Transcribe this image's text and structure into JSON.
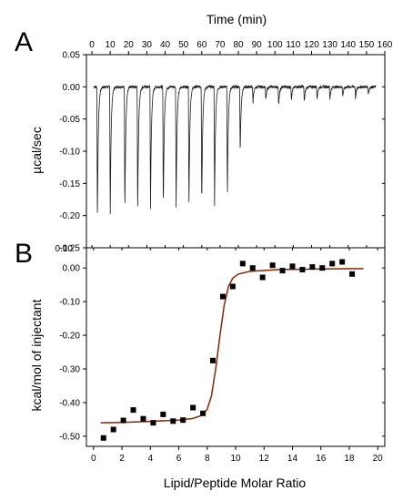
{
  "chart_data": [
    {
      "type": "line",
      "panel_label": "A",
      "title": "",
      "xlabel": "Time (min)",
      "ylabel": "µcal/sec",
      "xlim": [
        -3,
        160
      ],
      "ylim": [
        -0.25,
        0.05
      ],
      "x_ticks": [
        0,
        10,
        20,
        30,
        40,
        50,
        60,
        70,
        80,
        90,
        100,
        110,
        120,
        130,
        140,
        150,
        160
      ],
      "x_tick_labels": [
        "0",
        "10",
        "20",
        "30",
        "40",
        "50",
        "60",
        "70",
        "80",
        "90",
        "100",
        "110",
        "120",
        "130",
        "140",
        "150",
        "160"
      ],
      "y_ticks": [
        0.05,
        0.0,
        -0.05,
        -0.1,
        -0.15,
        -0.2,
        -0.25
      ],
      "y_tick_labels": [
        "0.05",
        "0.00",
        "-0.05",
        "-0.10",
        "-0.15",
        "-0.20",
        "-0.25"
      ],
      "baseline": 0.0,
      "series": [
        {
          "color": "#1a1a1a",
          "injection_times": [
            3,
            10,
            18,
            25,
            32,
            39,
            46,
            53,
            60,
            67,
            74,
            81,
            88,
            95,
            102,
            109,
            116,
            123,
            130,
            137,
            144,
            151
          ],
          "injection_peaks": [
            -0.21,
            -0.205,
            -0.2,
            -0.198,
            -0.196,
            -0.195,
            -0.193,
            -0.19,
            -0.188,
            -0.185,
            -0.175,
            -0.105,
            -0.025,
            -0.022,
            -0.03,
            -0.02,
            -0.025,
            -0.018,
            -0.02,
            -0.015,
            -0.018,
            -0.012
          ]
        }
      ]
    },
    {
      "type": "scatter",
      "panel_label": "B",
      "title": "",
      "xlabel": "Lipid/Peptide Molar Ratio",
      "ylabel": "kcal/mol of injectant",
      "xlim": [
        -0.5,
        20.5
      ],
      "ylim": [
        -0.53,
        0.06
      ],
      "x_ticks": [
        0,
        2,
        4,
        6,
        8,
        10,
        12,
        14,
        16,
        18,
        20
      ],
      "x_tick_labels": [
        "0",
        "2",
        "4",
        "6",
        "8",
        "10",
        "12",
        "14",
        "16",
        "18",
        "20"
      ],
      "y_ticks": [
        0.0,
        -0.1,
        -0.2,
        -0.3,
        -0.4,
        -0.5
      ],
      "y_tick_labels": [
        "0.00",
        "-0.10",
        "-0.20",
        "-0.30",
        "-0.40",
        "-0.50"
      ],
      "extra_top_tick_label": "0.10",
      "series": [
        {
          "marker": "square",
          "color": "#000000",
          "x": [
            0.7,
            1.4,
            2.1,
            2.8,
            3.5,
            4.2,
            4.9,
            5.6,
            6.3,
            7.0,
            7.7,
            8.4,
            9.1,
            9.8,
            10.5,
            11.2,
            11.9,
            12.6,
            13.3,
            14.0,
            14.7,
            15.4,
            16.1,
            16.8,
            17.5,
            18.2
          ],
          "y": [
            -0.505,
            -0.48,
            -0.453,
            -0.422,
            -0.448,
            -0.46,
            -0.435,
            -0.455,
            -0.452,
            -0.415,
            -0.432,
            -0.275,
            -0.085,
            -0.055,
            0.013,
            0.0,
            -0.028,
            0.008,
            -0.008,
            0.005,
            -0.005,
            0.003,
            0.0,
            0.013,
            0.018,
            -0.018
          ]
        },
        {
          "type": "line",
          "role": "fit",
          "color": "#8b2500",
          "x": [
            0.5,
            2,
            4,
            6,
            7,
            7.5,
            8,
            8.3,
            8.6,
            8.9,
            9.2,
            9.5,
            9.8,
            10.2,
            11,
            13,
            16,
            19
          ],
          "y": [
            -0.46,
            -0.459,
            -0.456,
            -0.452,
            -0.447,
            -0.44,
            -0.42,
            -0.38,
            -0.3,
            -0.2,
            -0.11,
            -0.055,
            -0.03,
            -0.018,
            -0.01,
            -0.005,
            -0.003,
            -0.002
          ]
        }
      ]
    }
  ]
}
